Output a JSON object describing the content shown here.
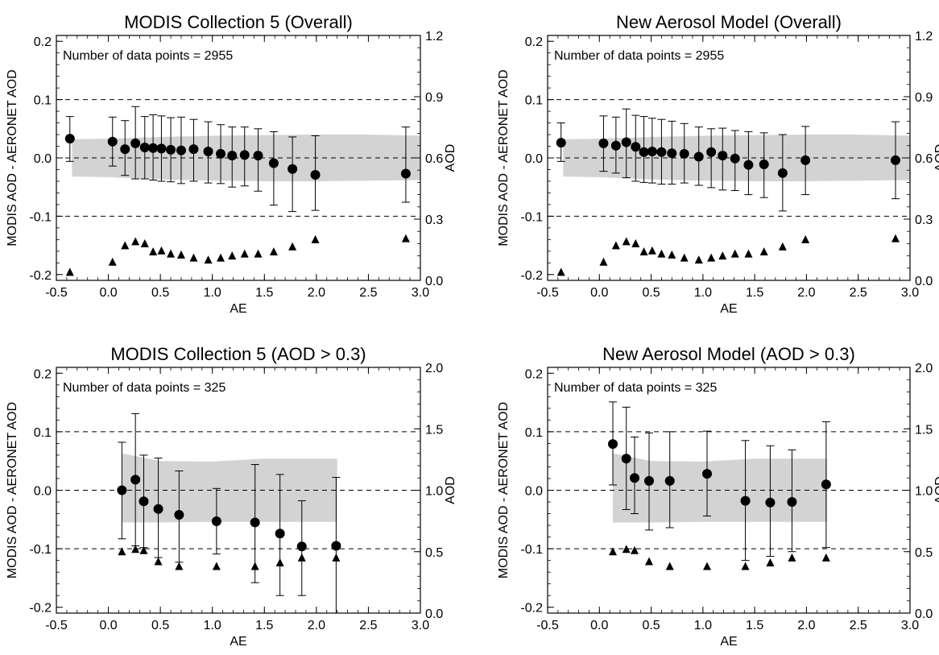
{
  "chart_data": [
    {
      "type": "scatter",
      "title": "MODIS Collection 5 (Overall)",
      "annotation": "Number of data points = 2955",
      "xlabel": "AE",
      "ylabel": "MODIS AOD - AERONET AOD",
      "y2label": "AOD",
      "xlim": [
        -0.5,
        3.0
      ],
      "ylim": [
        -0.21,
        0.21
      ],
      "y2lim": [
        0.0,
        1.2
      ],
      "x_ticks": [
        "-0.5",
        "0.0",
        "0.5",
        "1.0",
        "1.5",
        "2.0",
        "2.5",
        "3.0"
      ],
      "y_ticks": [
        "-0.2",
        "-0.1",
        "0.0",
        "0.1",
        "0.2"
      ],
      "y2_ticks": [
        "0.0",
        "0.3",
        "0.6",
        "0.9",
        "1.2"
      ],
      "dashed_lines": [
        -0.1,
        0.0,
        0.1
      ],
      "shaded_band": {
        "x": [
          -0.35,
          0.0,
          0.5,
          1.0,
          1.5,
          2.0,
          2.5,
          3.0
        ],
        "low": [
          -0.032,
          -0.033,
          -0.037,
          -0.039,
          -0.04,
          -0.04,
          -0.039,
          -0.038
        ],
        "high": [
          0.032,
          0.033,
          0.036,
          0.038,
          0.039,
          0.04,
          0.04,
          0.038
        ]
      },
      "series": [
        {
          "marker": "circle",
          "x": [
            -0.37,
            0.04,
            0.16,
            0.26,
            0.35,
            0.43,
            0.51,
            0.6,
            0.7,
            0.82,
            0.96,
            1.08,
            1.19,
            1.31,
            1.44,
            1.59,
            1.77,
            1.99,
            2.86
          ],
          "y": [
            0.033,
            0.028,
            0.015,
            0.025,
            0.018,
            0.017,
            0.016,
            0.014,
            0.013,
            0.015,
            0.011,
            0.007,
            0.004,
            0.005,
            0.004,
            -0.009,
            -0.019,
            -0.029,
            -0.027
          ],
          "err_low": [
            -0.006,
            -0.014,
            -0.03,
            -0.036,
            -0.036,
            -0.038,
            -0.04,
            -0.041,
            -0.044,
            -0.04,
            -0.043,
            -0.044,
            -0.05,
            -0.048,
            -0.057,
            -0.081,
            -0.092,
            -0.09,
            -0.076
          ],
          "err_high": [
            0.071,
            0.07,
            0.064,
            0.088,
            0.071,
            0.074,
            0.072,
            0.069,
            0.07,
            0.066,
            0.062,
            0.057,
            0.053,
            0.053,
            0.05,
            0.045,
            0.036,
            0.038,
            0.053
          ]
        },
        {
          "marker": "triangle",
          "axis": "right",
          "x": [
            -0.37,
            0.04,
            0.16,
            0.26,
            0.35,
            0.43,
            0.51,
            0.6,
            0.7,
            0.82,
            0.96,
            1.08,
            1.19,
            1.31,
            1.44,
            1.59,
            1.77,
            1.99,
            2.86
          ],
          "y": [
            0.04,
            0.09,
            0.17,
            0.19,
            0.18,
            0.14,
            0.145,
            0.13,
            0.125,
            0.11,
            0.1,
            0.11,
            0.12,
            0.13,
            0.13,
            0.14,
            0.165,
            0.2,
            0.205
          ]
        }
      ]
    },
    {
      "type": "scatter",
      "title": "New Aerosol Model (Overall)",
      "annotation": "Number of data points = 2955",
      "xlabel": "AE",
      "ylabel": "MODIS AOD - AERONET AOD",
      "y2label": "AOD",
      "xlim": [
        -0.5,
        3.0
      ],
      "ylim": [
        -0.21,
        0.21
      ],
      "y2lim": [
        0.0,
        1.2
      ],
      "x_ticks": [
        "-0.5",
        "0.0",
        "0.5",
        "1.0",
        "1.5",
        "2.0",
        "2.5",
        "3.0"
      ],
      "y_ticks": [
        "-0.2",
        "-0.1",
        "0.0",
        "0.1",
        "0.2"
      ],
      "y2_ticks": [
        "0.0",
        "0.3",
        "0.6",
        "0.9",
        "1.2"
      ],
      "dashed_lines": [
        -0.1,
        0.0,
        0.1
      ],
      "shaded_band": {
        "x": [
          -0.35,
          0.0,
          0.5,
          1.0,
          1.5,
          2.0,
          2.5,
          3.0
        ],
        "low": [
          -0.032,
          -0.033,
          -0.037,
          -0.039,
          -0.04,
          -0.04,
          -0.039,
          -0.038
        ],
        "high": [
          0.032,
          0.033,
          0.036,
          0.038,
          0.039,
          0.04,
          0.04,
          0.038
        ]
      },
      "series": [
        {
          "marker": "circle",
          "x": [
            -0.37,
            0.04,
            0.16,
            0.26,
            0.35,
            0.43,
            0.51,
            0.6,
            0.7,
            0.82,
            0.96,
            1.08,
            1.19,
            1.31,
            1.44,
            1.59,
            1.77,
            1.99,
            2.86
          ],
          "y": [
            0.026,
            0.025,
            0.021,
            0.027,
            0.019,
            0.01,
            0.011,
            0.01,
            0.008,
            0.007,
            0.002,
            0.01,
            0.004,
            -0.001,
            -0.012,
            -0.011,
            -0.026,
            -0.004,
            -0.004
          ],
          "err_low": [
            -0.006,
            -0.023,
            -0.026,
            -0.034,
            -0.04,
            -0.042,
            -0.043,
            -0.045,
            -0.045,
            -0.043,
            -0.047,
            -0.051,
            -0.055,
            -0.056,
            -0.063,
            -0.068,
            -0.091,
            -0.063,
            -0.07
          ],
          "err_high": [
            0.06,
            0.072,
            0.07,
            0.084,
            0.073,
            0.071,
            0.068,
            0.066,
            0.063,
            0.059,
            0.053,
            0.05,
            0.051,
            0.047,
            0.045,
            0.043,
            0.04,
            0.054,
            0.062
          ]
        },
        {
          "marker": "triangle",
          "axis": "right",
          "x": [
            -0.37,
            0.04,
            0.16,
            0.26,
            0.35,
            0.43,
            0.51,
            0.6,
            0.7,
            0.82,
            0.96,
            1.08,
            1.19,
            1.31,
            1.44,
            1.59,
            1.77,
            1.99,
            2.86
          ],
          "y": [
            0.04,
            0.09,
            0.17,
            0.19,
            0.18,
            0.14,
            0.145,
            0.13,
            0.125,
            0.11,
            0.1,
            0.11,
            0.12,
            0.13,
            0.13,
            0.14,
            0.165,
            0.2,
            0.205
          ]
        }
      ]
    },
    {
      "type": "scatter",
      "title": "MODIS Collection 5 (AOD > 0.3)",
      "annotation": "Number of data points = 325",
      "xlabel": "AE",
      "ylabel": "MODIS AOD - AERONET AOD",
      "y2label": "AOD",
      "xlim": [
        -0.5,
        3.0
      ],
      "ylim": [
        -0.21,
        0.21
      ],
      "y2lim": [
        0.0,
        2.0
      ],
      "x_ticks": [
        "-0.5",
        "0.0",
        "0.5",
        "1.0",
        "1.5",
        "2.0",
        "2.5",
        "3.0"
      ],
      "y_ticks": [
        "-0.2",
        "-0.1",
        "0.0",
        "0.1",
        "0.2"
      ],
      "y2_ticks": [
        "0.0",
        "0.5",
        "1.0",
        "1.5",
        "2.0"
      ],
      "dashed_lines": [
        -0.1,
        0.0,
        0.1
      ],
      "shaded_band": {
        "x": [
          0.13,
          0.5,
          1.0,
          1.5,
          2.2
        ],
        "low": [
          -0.055,
          -0.055,
          -0.054,
          -0.054,
          -0.054
        ],
        "high": [
          0.063,
          0.05,
          0.049,
          0.054,
          0.054
        ]
      },
      "series": [
        {
          "marker": "circle",
          "x": [
            0.13,
            0.26,
            0.34,
            0.48,
            0.68,
            1.04,
            1.41,
            1.65,
            1.86,
            2.19
          ],
          "y": [
            0.0,
            0.018,
            -0.019,
            -0.032,
            -0.042,
            -0.053,
            -0.055,
            -0.074,
            -0.096,
            -0.095
          ],
          "err_low": [
            -0.083,
            -0.095,
            -0.098,
            -0.115,
            -0.123,
            -0.109,
            -0.158,
            -0.18,
            -0.18,
            -0.21
          ],
          "err_high": [
            0.082,
            0.131,
            0.06,
            0.055,
            0.033,
            0.003,
            0.044,
            0.027,
            -0.018,
            0.022
          ]
        },
        {
          "marker": "triangle",
          "axis": "right",
          "x": [
            0.13,
            0.26,
            0.34,
            0.48,
            0.68,
            1.04,
            1.41,
            1.65,
            1.86,
            2.19
          ],
          "y": [
            0.5,
            0.52,
            0.51,
            0.42,
            0.38,
            0.38,
            0.38,
            0.41,
            0.45,
            0.45
          ]
        }
      ]
    },
    {
      "type": "scatter",
      "title": "New Aerosol Model (AOD > 0.3)",
      "annotation": "Number of data points = 325",
      "xlabel": "AE",
      "ylabel": "MODIS AOD - AERONET AOD",
      "y2label": "AOD",
      "xlim": [
        -0.5,
        3.0
      ],
      "ylim": [
        -0.21,
        0.21
      ],
      "y2lim": [
        0.0,
        2.0
      ],
      "x_ticks": [
        "-0.5",
        "0.0",
        "0.5",
        "1.0",
        "1.5",
        "2.0",
        "2.5",
        "3.0"
      ],
      "y_ticks": [
        "-0.2",
        "-0.1",
        "0.0",
        "0.1",
        "0.2"
      ],
      "y2_ticks": [
        "0.0",
        "0.5",
        "1.0",
        "1.5",
        "2.0"
      ],
      "dashed_lines": [
        -0.1,
        0.0,
        0.1
      ],
      "shaded_band": {
        "x": [
          0.13,
          0.5,
          1.0,
          1.5,
          2.2
        ],
        "low": [
          -0.055,
          -0.055,
          -0.054,
          -0.054,
          -0.054
        ],
        "high": [
          0.063,
          0.05,
          0.049,
          0.054,
          0.054
        ]
      },
      "series": [
        {
          "marker": "circle",
          "x": [
            0.13,
            0.26,
            0.34,
            0.48,
            0.68,
            1.04,
            1.41,
            1.65,
            1.86,
            2.19
          ],
          "y": [
            0.079,
            0.054,
            0.021,
            0.016,
            0.016,
            0.028,
            -0.018,
            -0.021,
            -0.02,
            0.01
          ],
          "err_low": [
            0.009,
            -0.033,
            -0.04,
            -0.068,
            -0.064,
            -0.044,
            -0.12,
            -0.113,
            -0.105,
            -0.098
          ],
          "err_high": [
            0.151,
            0.142,
            0.091,
            0.098,
            0.1,
            0.101,
            0.085,
            0.076,
            0.069,
            0.117
          ]
        },
        {
          "marker": "triangle",
          "axis": "right",
          "x": [
            0.13,
            0.26,
            0.34,
            0.48,
            0.68,
            1.04,
            1.41,
            1.65,
            1.86,
            2.19
          ],
          "y": [
            0.5,
            0.52,
            0.51,
            0.42,
            0.38,
            0.38,
            0.38,
            0.41,
            0.45,
            0.45
          ]
        }
      ]
    }
  ],
  "colors": {
    "band": "#d3d3d3",
    "ink": "#000000"
  }
}
